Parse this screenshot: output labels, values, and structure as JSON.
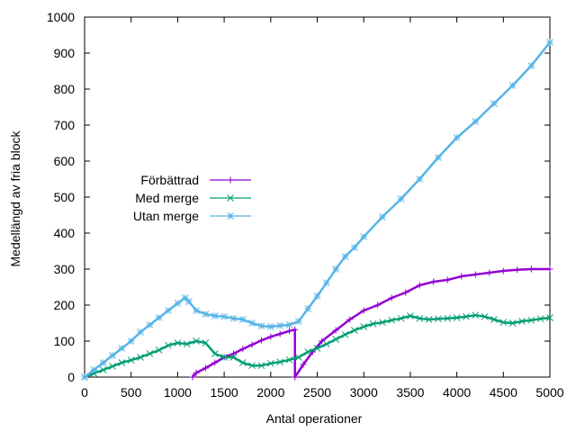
{
  "chart_data": {
    "type": "line",
    "xlabel": "Antal operationer",
    "ylabel": "Medellängd av fria block",
    "xlim": [
      0,
      5000
    ],
    "ylim": [
      0,
      1000
    ],
    "xticks": [
      0,
      500,
      1000,
      1500,
      2000,
      2500,
      3000,
      3500,
      4000,
      4500,
      5000
    ],
    "yticks": [
      0,
      100,
      200,
      300,
      400,
      500,
      600,
      700,
      800,
      900,
      1000
    ],
    "grid": false,
    "legend_position": "left, mid-height",
    "series": [
      {
        "name": "Förbättrad",
        "color": "#9400d3",
        "marker": "plus",
        "points": [
          [
            1160,
            0
          ],
          [
            1200,
            12
          ],
          [
            1300,
            25
          ],
          [
            1400,
            40
          ],
          [
            1500,
            55
          ],
          [
            1600,
            65
          ],
          [
            1700,
            78
          ],
          [
            1800,
            90
          ],
          [
            1900,
            102
          ],
          [
            2000,
            112
          ],
          [
            2100,
            120
          ],
          [
            2200,
            128
          ],
          [
            2260,
            132
          ],
          [
            2260,
            0
          ],
          [
            2350,
            35
          ],
          [
            2450,
            70
          ],
          [
            2550,
            100
          ],
          [
            2700,
            130
          ],
          [
            2850,
            160
          ],
          [
            3000,
            185
          ],
          [
            3150,
            200
          ],
          [
            3300,
            220
          ],
          [
            3450,
            235
          ],
          [
            3600,
            255
          ],
          [
            3750,
            265
          ],
          [
            3900,
            270
          ],
          [
            4050,
            280
          ],
          [
            4200,
            285
          ],
          [
            4350,
            290
          ],
          [
            4500,
            295
          ],
          [
            4650,
            298
          ],
          [
            4800,
            300
          ],
          [
            5000,
            300
          ]
        ]
      },
      {
        "name": "Med merge",
        "color": "#009e73",
        "marker": "cross",
        "points": [
          [
            0,
            0
          ],
          [
            100,
            10
          ],
          [
            200,
            20
          ],
          [
            300,
            30
          ],
          [
            400,
            40
          ],
          [
            500,
            47
          ],
          [
            600,
            55
          ],
          [
            700,
            65
          ],
          [
            800,
            75
          ],
          [
            900,
            88
          ],
          [
            1000,
            95
          ],
          [
            1100,
            92
          ],
          [
            1200,
            100
          ],
          [
            1300,
            95
          ],
          [
            1400,
            65
          ],
          [
            1500,
            55
          ],
          [
            1600,
            55
          ],
          [
            1700,
            40
          ],
          [
            1800,
            32
          ],
          [
            1900,
            32
          ],
          [
            2000,
            38
          ],
          [
            2100,
            42
          ],
          [
            2200,
            48
          ],
          [
            2300,
            55
          ],
          [
            2400,
            70
          ],
          [
            2500,
            80
          ],
          [
            2600,
            92
          ],
          [
            2700,
            105
          ],
          [
            2800,
            118
          ],
          [
            2900,
            130
          ],
          [
            3000,
            140
          ],
          [
            3100,
            148
          ],
          [
            3200,
            152
          ],
          [
            3300,
            158
          ],
          [
            3400,
            163
          ],
          [
            3500,
            170
          ],
          [
            3600,
            163
          ],
          [
            3700,
            160
          ],
          [
            3800,
            162
          ],
          [
            3900,
            163
          ],
          [
            4000,
            165
          ],
          [
            4100,
            168
          ],
          [
            4200,
            172
          ],
          [
            4300,
            168
          ],
          [
            4400,
            160
          ],
          [
            4500,
            152
          ],
          [
            4600,
            150
          ],
          [
            4700,
            155
          ],
          [
            4800,
            158
          ],
          [
            4900,
            162
          ],
          [
            5000,
            165
          ]
        ]
      },
      {
        "name": "Utan merge",
        "color": "#56b4e9",
        "marker": "star",
        "points": [
          [
            0,
            0
          ],
          [
            100,
            20
          ],
          [
            200,
            40
          ],
          [
            300,
            60
          ],
          [
            400,
            80
          ],
          [
            500,
            100
          ],
          [
            600,
            125
          ],
          [
            700,
            145
          ],
          [
            800,
            165
          ],
          [
            900,
            185
          ],
          [
            1000,
            205
          ],
          [
            1080,
            220
          ],
          [
            1120,
            210
          ],
          [
            1200,
            185
          ],
          [
            1300,
            175
          ],
          [
            1400,
            170
          ],
          [
            1500,
            168
          ],
          [
            1600,
            163
          ],
          [
            1700,
            160
          ],
          [
            1800,
            150
          ],
          [
            1900,
            142
          ],
          [
            2000,
            140
          ],
          [
            2100,
            143
          ],
          [
            2200,
            145
          ],
          [
            2300,
            155
          ],
          [
            2400,
            190
          ],
          [
            2500,
            225
          ],
          [
            2600,
            262
          ],
          [
            2700,
            300
          ],
          [
            2800,
            335
          ],
          [
            2900,
            360
          ],
          [
            3000,
            390
          ],
          [
            3200,
            445
          ],
          [
            3400,
            495
          ],
          [
            3600,
            550
          ],
          [
            3800,
            610
          ],
          [
            4000,
            665
          ],
          [
            4200,
            710
          ],
          [
            4400,
            760
          ],
          [
            4600,
            810
          ],
          [
            4800,
            865
          ],
          [
            5000,
            930
          ]
        ]
      }
    ]
  }
}
